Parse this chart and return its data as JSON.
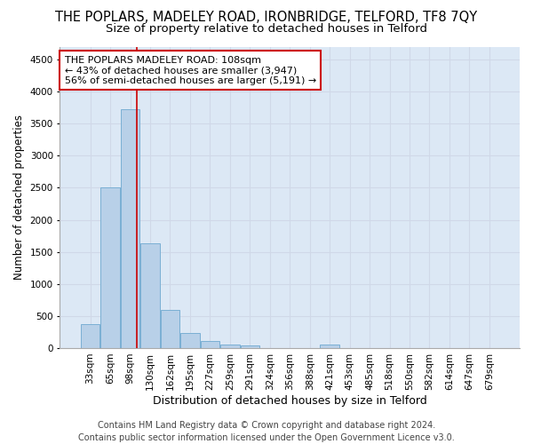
{
  "title_line1": "THE POPLARS, MADELEY ROAD, IRONBRIDGE, TELFORD, TF8 7QY",
  "title_line2": "Size of property relative to detached houses in Telford",
  "xlabel": "Distribution of detached houses by size in Telford",
  "ylabel": "Number of detached properties",
  "footer_line1": "Contains HM Land Registry data © Crown copyright and database right 2024.",
  "footer_line2": "Contains public sector information licensed under the Open Government Licence v3.0.",
  "bar_labels": [
    "33sqm",
    "65sqm",
    "98sqm",
    "130sqm",
    "162sqm",
    "195sqm",
    "227sqm",
    "259sqm",
    "291sqm",
    "324sqm",
    "356sqm",
    "388sqm",
    "421sqm",
    "453sqm",
    "485sqm",
    "518sqm",
    "550sqm",
    "582sqm",
    "614sqm",
    "647sqm",
    "679sqm"
  ],
  "bar_values": [
    370,
    2510,
    3730,
    1640,
    590,
    230,
    110,
    60,
    35,
    0,
    0,
    0,
    55,
    0,
    0,
    0,
    0,
    0,
    0,
    0,
    0
  ],
  "bar_color": "#b8d0e8",
  "bar_edge_color": "#7aafd4",
  "vline_x": 2.35,
  "vline_color": "#cc0000",
  "annotation_text": "THE POPLARS MADELEY ROAD: 108sqm\n← 43% of detached houses are smaller (3,947)\n56% of semi-detached houses are larger (5,191) →",
  "annotation_box_color": "#cc0000",
  "ylim": [
    0,
    4700
  ],
  "yticks": [
    0,
    500,
    1000,
    1500,
    2000,
    2500,
    3000,
    3500,
    4000,
    4500
  ],
  "grid_color": "#d0d8e8",
  "background_color": "#dce8f5",
  "title_fontsize": 10.5,
  "subtitle_fontsize": 9.5,
  "axis_label_fontsize": 9,
  "ylabel_fontsize": 8.5,
  "tick_fontsize": 7.5,
  "annotation_fontsize": 8,
  "footer_fontsize": 7
}
